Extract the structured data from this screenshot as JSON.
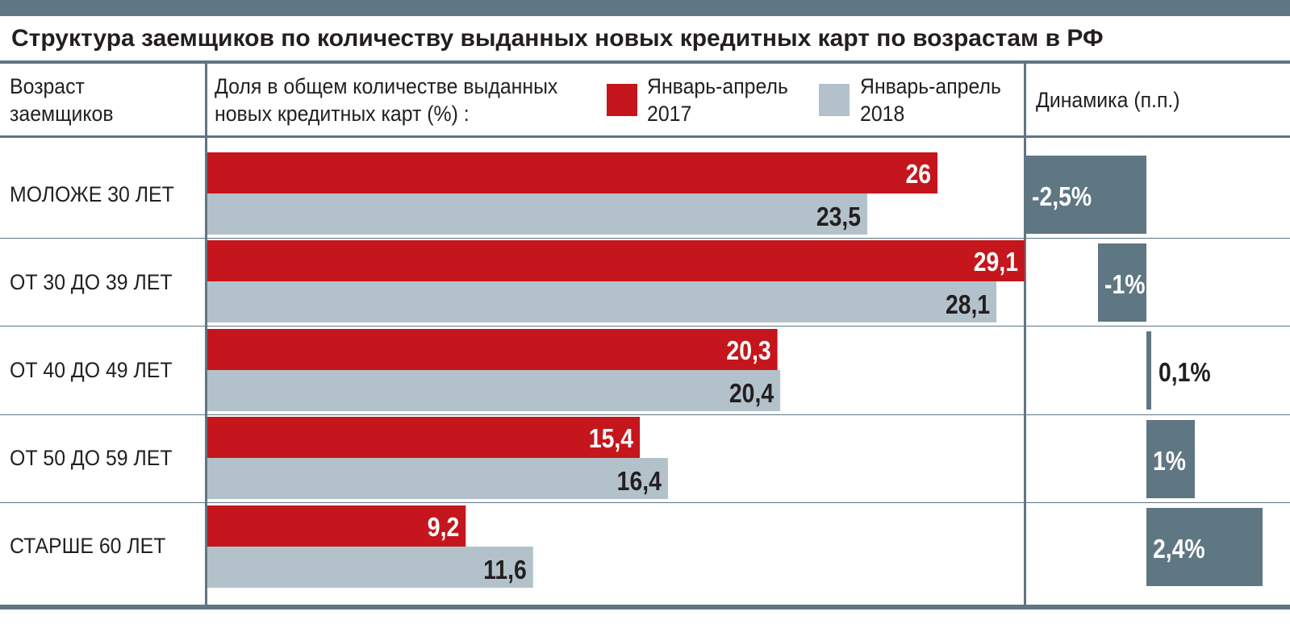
{
  "title": "Структура заемщиков по количеству выданных новых кредитных карт по возрастам в РФ",
  "header": {
    "age_col_line1": "Возраст",
    "age_col_line2": "заемщиков",
    "share_col_line1": "Доля в общем количестве выданных",
    "share_col_line2": "новых кредитных карт (%) :",
    "dynamics_col": "Динамика (п.п.)"
  },
  "legend": [
    {
      "line1": "Январь-апрель",
      "line2": "2017",
      "color": "#c4161c"
    },
    {
      "line1": "Январь-апрель",
      "line2": "2018",
      "color": "#b3c2ca"
    }
  ],
  "colors": {
    "accent_red": "#c4161c",
    "light_gray": "#b3c2ca",
    "slate": "#5f7683"
  },
  "chart_data": {
    "type": "bar",
    "orientation": "horizontal",
    "categories": [
      "МОЛОЖЕ 30 ЛЕТ",
      "ОТ 30 ДО 39 ЛЕТ",
      "ОТ 40 ДО 49 ЛЕТ",
      "ОТ 50 ДО 59 ЛЕТ",
      "СТАРШЕ 60 ЛЕТ"
    ],
    "series": [
      {
        "name": "Январь-апрель 2017",
        "values": [
          26,
          29.1,
          20.3,
          15.4,
          9.2
        ],
        "labels": [
          "26",
          "29,1",
          "20,3",
          "15,4",
          "9,2"
        ]
      },
      {
        "name": "Январь-апрель 2018",
        "values": [
          23.5,
          28.1,
          20.4,
          16.4,
          11.6
        ],
        "labels": [
          "23,5",
          "28,1",
          "20,4",
          "16,4",
          "11,6"
        ]
      }
    ],
    "dynamics": {
      "values": [
        -2.5,
        -1,
        0.1,
        1,
        2.4
      ],
      "labels": [
        "-2,5%",
        "-1%",
        "0,1%",
        "1%",
        "2,4%"
      ]
    },
    "xlim": [
      0,
      29.1
    ],
    "grid": false,
    "legend_position": "top"
  }
}
